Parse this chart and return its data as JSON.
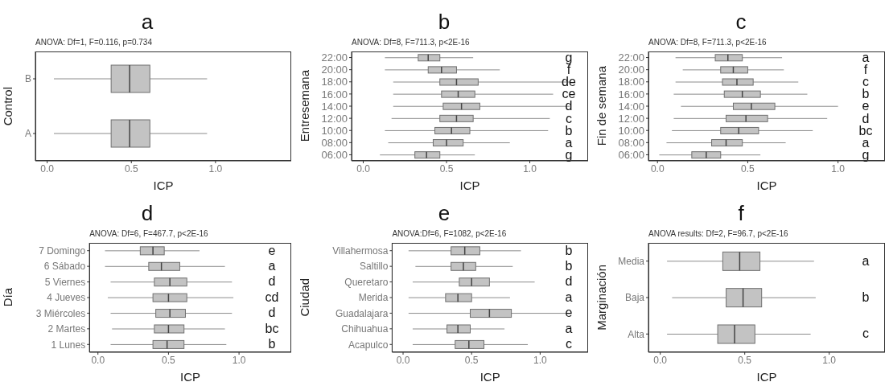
{
  "chart_data": [
    {
      "type": "box",
      "title": "a",
      "subtitle": "ANOVA: Df=1, F=0.116, p=0.734",
      "xlabel": "ICP",
      "ylabel": "Control",
      "orientation": "horizontal",
      "categories": [
        "B",
        "A"
      ],
      "xlim": [
        -0.07,
        1.45
      ],
      "xticks": [
        {
          "value": 0,
          "label": "0.0"
        },
        {
          "value": 0.5,
          "label": "0.5"
        },
        {
          "value": 1,
          "label": "1.0"
        }
      ],
      "series": [
        {
          "color": "#c3c3c3",
          "boxes": [
            {
              "low": 0.04,
              "q1": 0.38,
              "median": 0.49,
              "q3": 0.61,
              "high": 0.95
            },
            {
              "low": 0.04,
              "q1": 0.38,
              "median": 0.49,
              "q3": 0.61,
              "high": 0.95
            }
          ]
        }
      ]
    },
    {
      "type": "box",
      "title": "b",
      "subtitle": "ANOVA: Df=8, F=711.3, p<2E-16",
      "xlabel": "ICP",
      "ylabel": "Entresemana",
      "orientation": "horizontal",
      "categories": [
        "22:00",
        "20:00",
        "18:00",
        "16:00",
        "14:00",
        "12:00",
        "10:00",
        "08:00",
        "06:00"
      ],
      "xlim": [
        -0.07,
        1.35
      ],
      "xticks": [
        {
          "value": 0,
          "label": "0.0"
        },
        {
          "value": 0.5,
          "label": "0.5"
        },
        {
          "value": 1,
          "label": "1.0"
        }
      ],
      "series": [
        {
          "color": "#c3c3c3",
          "boxes": [
            {
              "low": 0.13,
              "q1": 0.33,
              "median": 0.39,
              "q3": 0.46,
              "high": 0.66
            },
            {
              "low": 0.13,
              "q1": 0.39,
              "median": 0.47,
              "q3": 0.56,
              "high": 0.82
            },
            {
              "low": 0.18,
              "q1": 0.46,
              "median": 0.56,
              "q3": 0.69,
              "high": 1.24
            },
            {
              "low": 0.18,
              "q1": 0.47,
              "median": 0.57,
              "q3": 0.67,
              "high": 1.14
            },
            {
              "low": 0.18,
              "q1": 0.48,
              "median": 0.59,
              "q3": 0.7,
              "high": 1.24
            },
            {
              "low": 0.17,
              "q1": 0.46,
              "median": 0.56,
              "q3": 0.66,
              "high": 1.12
            },
            {
              "low": 0.13,
              "q1": 0.43,
              "median": 0.53,
              "q3": 0.64,
              "high": 1.11
            },
            {
              "low": 0.15,
              "q1": 0.42,
              "median": 0.5,
              "q3": 0.6,
              "high": 0.88
            },
            {
              "low": 0.1,
              "q1": 0.31,
              "median": 0.38,
              "q3": 0.46,
              "high": 0.67
            }
          ]
        }
      ],
      "annotations": [
        "g",
        "f",
        "de",
        "ce",
        "d",
        "c",
        "b",
        "a",
        "g"
      ]
    },
    {
      "type": "box",
      "title": "c",
      "subtitle": "ANOVA: Df=8, F=711.3, p<2E-16",
      "xlabel": "ICP",
      "ylabel": "Fin de semana",
      "orientation": "horizontal",
      "categories": [
        "22:00",
        "20:00",
        "18:00",
        "16:00",
        "14:00",
        "12:00",
        "10:00",
        "08:00",
        "06:00"
      ],
      "xlim": [
        -0.05,
        1.26
      ],
      "xticks": [
        {
          "value": 0,
          "label": "0.0"
        },
        {
          "value": 0.5,
          "label": "0.5"
        },
        {
          "value": 1,
          "label": "1.0"
        }
      ],
      "series": [
        {
          "color": "#c3c3c3",
          "boxes": [
            {
              "low": 0.1,
              "q1": 0.32,
              "median": 0.39,
              "q3": 0.47,
              "high": 0.69
            },
            {
              "low": 0.14,
              "q1": 0.35,
              "median": 0.42,
              "q3": 0.5,
              "high": 0.7
            },
            {
              "low": 0.1,
              "q1": 0.36,
              "median": 0.44,
              "q3": 0.53,
              "high": 0.78
            },
            {
              "low": 0.09,
              "q1": 0.37,
              "median": 0.47,
              "q3": 0.57,
              "high": 0.83
            },
            {
              "low": 0.13,
              "q1": 0.42,
              "median": 0.52,
              "q3": 0.65,
              "high": 1.0
            },
            {
              "low": 0.09,
              "q1": 0.38,
              "median": 0.49,
              "q3": 0.61,
              "high": 0.94
            },
            {
              "low": 0.08,
              "q1": 0.35,
              "median": 0.45,
              "q3": 0.56,
              "high": 0.86
            },
            {
              "low": 0.05,
              "q1": 0.3,
              "median": 0.38,
              "q3": 0.47,
              "high": 0.71
            },
            {
              "low": 0.01,
              "q1": 0.19,
              "median": 0.27,
              "q3": 0.35,
              "high": 0.57
            }
          ]
        }
      ],
      "annotations": [
        "a",
        "f",
        "c",
        "b",
        "e",
        "d",
        "bc",
        "a",
        "g"
      ]
    },
    {
      "type": "box",
      "title": "d",
      "subtitle": "ANOVA: Df=6, F=467.7, p<2E-16",
      "xlabel": "ICP",
      "ylabel": "Día",
      "orientation": "horizontal",
      "categories": [
        "7 Domingo",
        "6 Sábado",
        "5 Viernes",
        "4 Jueves",
        "3 Miércoles",
        "2 Martes",
        "1 Lunes"
      ],
      "xlim": [
        -0.06,
        1.37
      ],
      "xticks": [
        {
          "value": 0,
          "label": "0.0"
        },
        {
          "value": 0.5,
          "label": "0.5"
        },
        {
          "value": 1,
          "label": "1.0"
        }
      ],
      "series": [
        {
          "color": "#c3c3c3",
          "boxes": [
            {
              "low": 0.05,
              "q1": 0.3,
              "median": 0.39,
              "q3": 0.47,
              "high": 0.72
            },
            {
              "low": 0.05,
              "q1": 0.36,
              "median": 0.45,
              "q3": 0.58,
              "high": 0.9
            },
            {
              "low": 0.09,
              "q1": 0.4,
              "median": 0.51,
              "q3": 0.63,
              "high": 0.95
            },
            {
              "low": 0.07,
              "q1": 0.39,
              "median": 0.5,
              "q3": 0.63,
              "high": 0.96
            },
            {
              "low": 0.09,
              "q1": 0.41,
              "median": 0.51,
              "q3": 0.62,
              "high": 0.95
            },
            {
              "low": 0.1,
              "q1": 0.4,
              "median": 0.5,
              "q3": 0.61,
              "high": 0.9
            },
            {
              "low": 0.09,
              "q1": 0.39,
              "median": 0.49,
              "q3": 0.61,
              "high": 0.91
            }
          ]
        }
      ],
      "annotations": [
        "e",
        "a",
        "d",
        "cd",
        "d",
        "bc",
        "b"
      ]
    },
    {
      "type": "box",
      "title": "e",
      "subtitle": "ANOVA:Df=6, F=1082, p<2E-16",
      "xlabel": "ICP",
      "ylabel": "Ciudad",
      "orientation": "horizontal",
      "categories": [
        "Villahermosa",
        "Saltillo",
        "Queretaro",
        "Merida",
        "Guadalajara",
        "Chihuahua",
        "Acapulco"
      ],
      "xlim": [
        -0.08,
        1.35
      ],
      "xticks": [
        {
          "value": 0,
          "label": "0.0"
        },
        {
          "value": 0.5,
          "label": "0.5"
        },
        {
          "value": 1,
          "label": "1.0"
        }
      ],
      "series": [
        {
          "color": "#c3c3c3",
          "boxes": [
            {
              "low": 0.04,
              "q1": 0.35,
              "median": 0.45,
              "q3": 0.56,
              "high": 0.86
            },
            {
              "low": 0.09,
              "q1": 0.35,
              "median": 0.44,
              "q3": 0.53,
              "high": 0.8
            },
            {
              "low": 0.07,
              "q1": 0.41,
              "median": 0.5,
              "q3": 0.63,
              "high": 0.96
            },
            {
              "low": 0.04,
              "q1": 0.31,
              "median": 0.4,
              "q3": 0.5,
              "high": 0.78
            },
            {
              "low": 0.04,
              "q1": 0.49,
              "median": 0.63,
              "q3": 0.79,
              "high": 1.2
            },
            {
              "low": 0.07,
              "q1": 0.32,
              "median": 0.4,
              "q3": 0.49,
              "high": 0.74
            },
            {
              "low": 0.07,
              "q1": 0.38,
              "median": 0.48,
              "q3": 0.59,
              "high": 0.91
            }
          ]
        }
      ],
      "annotations": [
        "b",
        "b",
        "d",
        "a",
        "e",
        "a",
        "c"
      ]
    },
    {
      "type": "box",
      "title": "f",
      "subtitle": "ANOVA results: Df=2, F=96.7, p<2E-16",
      "xlabel": "ICP",
      "ylabel": "Marginación",
      "orientation": "horizontal",
      "categories": [
        "Media",
        "Baja",
        "Alta"
      ],
      "xlim": [
        -0.07,
        1.33
      ],
      "xticks": [
        {
          "value": 0,
          "label": "0.0"
        },
        {
          "value": 0.5,
          "label": "0.5"
        },
        {
          "value": 1,
          "label": "1.0"
        }
      ],
      "series": [
        {
          "color": "#c3c3c3",
          "boxes": [
            {
              "low": 0.04,
              "q1": 0.37,
              "median": 0.47,
              "q3": 0.59,
              "high": 0.91
            },
            {
              "low": 0.07,
              "q1": 0.39,
              "median": 0.49,
              "q3": 0.6,
              "high": 0.92
            },
            {
              "low": 0.04,
              "q1": 0.34,
              "median": 0.44,
              "q3": 0.56,
              "high": 0.89
            }
          ]
        }
      ],
      "annotations": [
        "a",
        "b",
        "c"
      ]
    }
  ]
}
